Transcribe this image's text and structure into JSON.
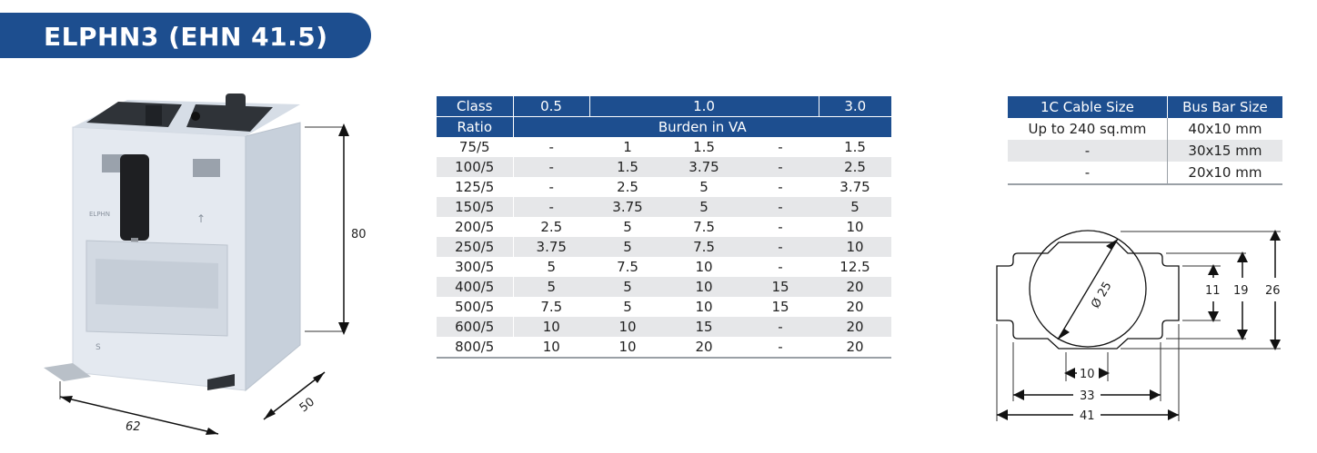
{
  "title": "ELPHN3 (EHN 41.5)",
  "product_labels": {
    "brand": "ELPHN",
    "arrow_mark": "↑",
    "cert_logo": "S"
  },
  "product_dims": {
    "height": "80",
    "width": "62",
    "depth": "50"
  },
  "burden_table": {
    "header": [
      "Class",
      "0.5",
      "1.0",
      "3.0"
    ],
    "subheader": [
      "Ratio",
      "Burden in VA"
    ],
    "rows": [
      [
        "75/5",
        "-",
        "1",
        "1.5",
        "-",
        "1.5"
      ],
      [
        "100/5",
        "-",
        "1.5",
        "3.75",
        "-",
        "2.5"
      ],
      [
        "125/5",
        "-",
        "2.5",
        "5",
        "-",
        "3.75"
      ],
      [
        "150/5",
        "-",
        "3.75",
        "5",
        "-",
        "5"
      ],
      [
        "200/5",
        "2.5",
        "5",
        "7.5",
        "-",
        "10"
      ],
      [
        "250/5",
        "3.75",
        "5",
        "7.5",
        "-",
        "10"
      ],
      [
        "300/5",
        "5",
        "7.5",
        "10",
        "-",
        "12.5"
      ],
      [
        "400/5",
        "5",
        "5",
        "10",
        "15",
        "20"
      ],
      [
        "500/5",
        "7.5",
        "5",
        "10",
        "15",
        "20"
      ],
      [
        "600/5",
        "10",
        "10",
        "15",
        "-",
        "20"
      ],
      [
        "800/5",
        "10",
        "10",
        "20",
        "-",
        "20"
      ]
    ]
  },
  "cable_table": {
    "header": [
      "1C Cable Size",
      "Bus Bar Size"
    ],
    "rows": [
      [
        "Up to 240 sq.mm",
        "40x10 mm"
      ],
      [
        "-",
        "30x15 mm"
      ],
      [
        "-",
        "20x10 mm"
      ]
    ]
  },
  "aperture_dims": {
    "diameter": "Ø 25",
    "h_inner": "11",
    "h_mid": "19",
    "h_outer": "26",
    "w_inner": "10",
    "w_mid": "33",
    "w_outer": "41"
  },
  "colors": {
    "brand_blue": "#1d4e8f",
    "row_alt": "#e6e7e9"
  }
}
